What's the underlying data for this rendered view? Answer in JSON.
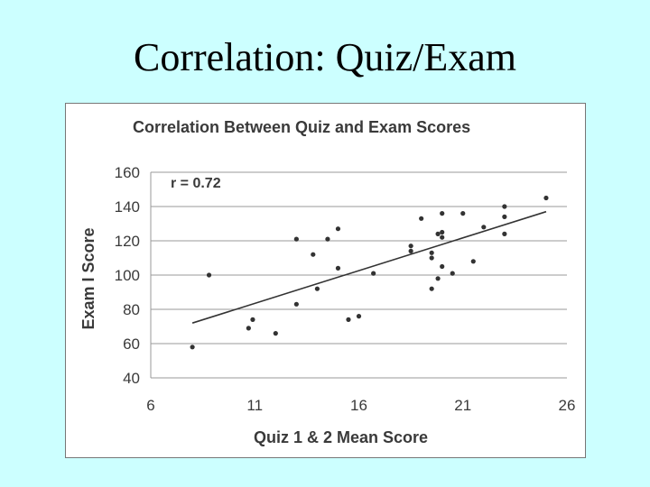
{
  "slide": {
    "title": "Correlation: Quiz/Exam"
  },
  "chart_data": {
    "type": "scatter",
    "title": "Correlation Between Quiz and Exam Scores",
    "xlabel": "Quiz 1 & 2 Mean Score",
    "ylabel": "Exam I Score",
    "xlim": [
      6,
      26
    ],
    "ylim": [
      40,
      160
    ],
    "xticks": [
      6,
      11,
      16,
      21,
      26
    ],
    "yticks": [
      40,
      60,
      80,
      100,
      120,
      140,
      160
    ],
    "grid": "horizontal",
    "annotation": "r = 0.72",
    "trendline": {
      "x": [
        8,
        25
      ],
      "y": [
        72,
        137
      ]
    },
    "points": [
      {
        "x": 8,
        "y": 58
      },
      {
        "x": 8.8,
        "y": 100
      },
      {
        "x": 10.7,
        "y": 69
      },
      {
        "x": 10.9,
        "y": 74
      },
      {
        "x": 12,
        "y": 66
      },
      {
        "x": 13,
        "y": 121
      },
      {
        "x": 13,
        "y": 83
      },
      {
        "x": 13.8,
        "y": 112
      },
      {
        "x": 14,
        "y": 92
      },
      {
        "x": 14.5,
        "y": 121
      },
      {
        "x": 15,
        "y": 127
      },
      {
        "x": 15,
        "y": 104
      },
      {
        "x": 15.5,
        "y": 74
      },
      {
        "x": 16,
        "y": 76
      },
      {
        "x": 16.7,
        "y": 101
      },
      {
        "x": 18.5,
        "y": 117
      },
      {
        "x": 18.5,
        "y": 114
      },
      {
        "x": 19,
        "y": 133
      },
      {
        "x": 19.5,
        "y": 113
      },
      {
        "x": 19.5,
        "y": 110
      },
      {
        "x": 19.5,
        "y": 92
      },
      {
        "x": 19.8,
        "y": 124
      },
      {
        "x": 19.8,
        "y": 98
      },
      {
        "x": 20,
        "y": 136
      },
      {
        "x": 20,
        "y": 125
      },
      {
        "x": 20,
        "y": 122
      },
      {
        "x": 20,
        "y": 105
      },
      {
        "x": 20.5,
        "y": 101
      },
      {
        "x": 21,
        "y": 136
      },
      {
        "x": 21.5,
        "y": 108
      },
      {
        "x": 22,
        "y": 128
      },
      {
        "x": 23,
        "y": 140
      },
      {
        "x": 23,
        "y": 134
      },
      {
        "x": 23,
        "y": 124
      },
      {
        "x": 25,
        "y": 145
      }
    ]
  }
}
